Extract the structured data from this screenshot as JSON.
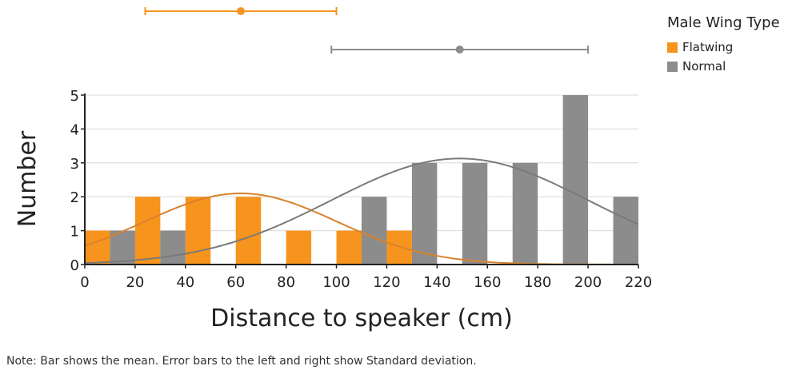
{
  "chart_data": {
    "type": "bar",
    "xlabel": "Distance to speaker (cm)",
    "ylabel": "Number",
    "xlim": [
      0,
      220
    ],
    "ylim": [
      0,
      5
    ],
    "x_ticks": [
      0,
      20,
      40,
      60,
      80,
      100,
      120,
      140,
      160,
      180,
      200,
      220
    ],
    "y_ticks": [
      0,
      1,
      2,
      3,
      4,
      5
    ],
    "bin_width": 20,
    "grid": "horizontal",
    "legend_title": "Male Wing Type",
    "legend_position": "top-right",
    "series": [
      {
        "name": "Flatwing",
        "color": "#f7941d",
        "bin_starts": [
          0,
          20,
          40,
          60,
          80,
          100,
          120,
          140,
          160,
          180,
          200
        ],
        "values": [
          1,
          2,
          2,
          2,
          1,
          1,
          1,
          0,
          0,
          0,
          0
        ],
        "mean": 62,
        "sd": 38
      },
      {
        "name": "Normal",
        "color": "#8c8c8c",
        "bin_starts": [
          0,
          20,
          40,
          60,
          80,
          100,
          120,
          140,
          160,
          180,
          200
        ],
        "values": [
          1,
          1,
          0,
          0,
          0,
          2,
          3,
          3,
          3,
          5,
          2
        ],
        "mean": 149,
        "sd": 51
      }
    ]
  },
  "note": "Note: Bar shows the mean. Error bars to the left and right show Standard deviation."
}
